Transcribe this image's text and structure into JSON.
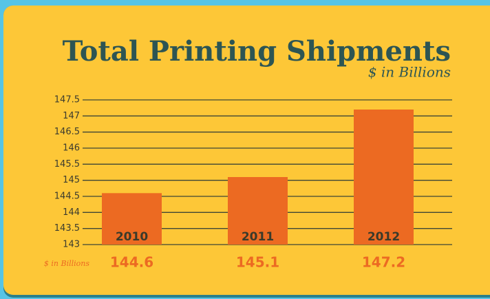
{
  "chart_data": {
    "type": "bar",
    "title": "Total Printing Shipments",
    "subtitle": "$ in Billions",
    "value_row_label": "$ in Billions",
    "categories": [
      "2010",
      "2011",
      "2012"
    ],
    "values": [
      144.6,
      145.1,
      147.2
    ],
    "color": "#ec6a22",
    "ylim": [
      143,
      147.5
    ],
    "yticks": [
      143,
      143.5,
      144,
      144.5,
      145,
      145.5,
      146,
      146.5,
      147,
      147.5
    ],
    "grid": true
  }
}
